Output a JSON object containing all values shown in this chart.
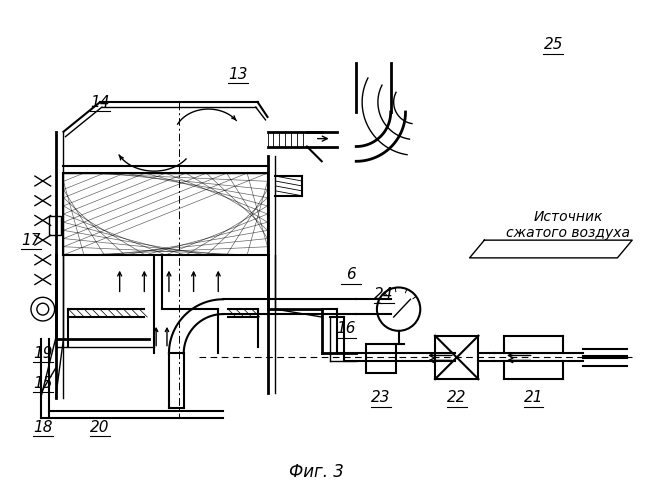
{
  "title": "Фиг. 3",
  "source_label": "Источник\nсжатого воздуха",
  "bg_color": "#ffffff",
  "line_color": "#000000"
}
